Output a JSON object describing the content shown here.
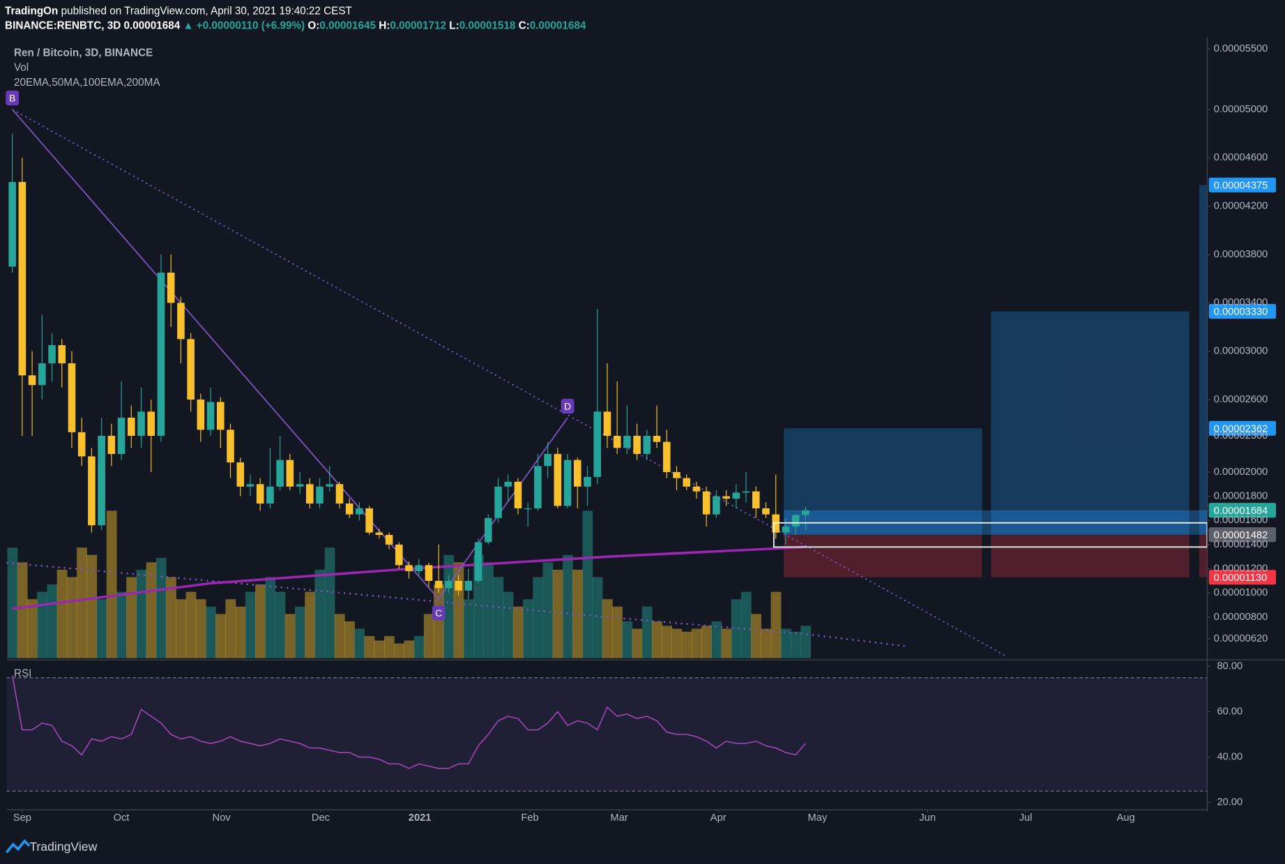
{
  "header": {
    "author": "TradingOn",
    "published": " published on TradingView.com, April 30, 2021 19:40:22 CEST",
    "symbol": "BINANCE:RENBTC, 3D",
    "last": "0.00001684",
    "change": "▲ +0.00000110 (+6.99%)",
    "ohlc": [
      {
        "label": "O:",
        "value": "0.00001645"
      },
      {
        "label": "H:",
        "value": "0.00001712"
      },
      {
        "label": "L:",
        "value": "0.00001518"
      },
      {
        "label": "C:",
        "value": "0.00001684"
      }
    ]
  },
  "chart_data": {
    "type": "candlestick",
    "title": "Ren / Bitcoin, 3D, BINANCE",
    "volume_label": "Vol",
    "ma_label": "20EMA,50MA,100EMA,200MA",
    "up_color": "#26a69a",
    "down_color": "#f9c02e",
    "xlim": [
      -0.58,
      120.5
    ],
    "xticks": [
      {
        "value": 1.0,
        "label": "Sep"
      },
      {
        "value": 11.0,
        "label": "Oct"
      },
      {
        "value": 21.1,
        "label": "Nov"
      },
      {
        "value": 31.1,
        "label": "Dec"
      },
      {
        "value": 41.1,
        "label": "2021"
      },
      {
        "value": 52.2,
        "label": "Feb"
      },
      {
        "value": 61.2,
        "label": "Mar"
      },
      {
        "value": 71.2,
        "label": "Apr"
      },
      {
        "value": 81.2,
        "label": "May"
      },
      {
        "value": 92.3,
        "label": "Jun"
      },
      {
        "value": 102.2,
        "label": "Jul"
      },
      {
        "value": 112.3,
        "label": "Aug"
      }
    ],
    "ylim": [
      4.6e-06,
      5.6e-05
    ],
    "yticks": [
      {
        "value": 5.5e-05,
        "label": "0.00005500"
      },
      {
        "value": 5e-05,
        "label": "0.00005000"
      },
      {
        "value": 4.6e-05,
        "label": "0.00004600"
      },
      {
        "value": 4.2e-05,
        "label": "0.00004200"
      },
      {
        "value": 3.8e-05,
        "label": "0.00003800"
      },
      {
        "value": 3.4e-05,
        "label": "0.00003400"
      },
      {
        "value": 3e-05,
        "label": "0.00003000"
      },
      {
        "value": 2.6e-05,
        "label": "0.00002600"
      },
      {
        "value": 2.3e-05,
        "label": "0.00002300"
      },
      {
        "value": 2e-05,
        "label": "0.00002000"
      },
      {
        "value": 1.8e-05,
        "label": "0.00001800"
      },
      {
        "value": 1.6e-05,
        "label": "0.00001600"
      },
      {
        "value": 1.4e-05,
        "label": "0.00001400"
      },
      {
        "value": 1.2e-05,
        "label": "0.00001200"
      },
      {
        "value": 1e-05,
        "label": "0.00001000"
      },
      {
        "value": 8e-06,
        "label": "0.00000800"
      },
      {
        "value": 6.2e-06,
        "label": "0.00000620"
      }
    ],
    "ohlc": [
      [
        3.7e-05,
        4.8e-05,
        3.65e-05,
        4.4e-05
      ],
      [
        4.4e-05,
        4.6e-05,
        2.3e-05,
        2.8e-05
      ],
      [
        2.8e-05,
        3e-05,
        2.3e-05,
        2.72e-05
      ],
      [
        2.72e-05,
        3.3e-05,
        2.6e-05,
        2.9e-05
      ],
      [
        2.9e-05,
        3.15e-05,
        2.75e-05,
        3.05e-05
      ],
      [
        3.05e-05,
        3.1e-05,
        2.7e-05,
        2.9e-05
      ],
      [
        2.9e-05,
        3e-05,
        2.2e-05,
        2.33e-05
      ],
      [
        2.33e-05,
        2.45e-05,
        2.05e-05,
        2.13e-05
      ],
      [
        2.13e-05,
        2.2e-05,
        1.5e-05,
        1.56e-05
      ],
      [
        1.56e-05,
        2.45e-05,
        1.52e-05,
        2.3e-05
      ],
      [
        2.3e-05,
        2.4e-05,
        2.05e-05,
        2.15e-05
      ],
      [
        2.15e-05,
        2.75e-05,
        2.1e-05,
        2.45e-05
      ],
      [
        2.45e-05,
        2.55e-05,
        2.2e-05,
        2.3e-05
      ],
      [
        2.3e-05,
        2.7e-05,
        2.2e-05,
        2.5e-05
      ],
      [
        2.5e-05,
        2.6e-05,
        2e-05,
        2.3e-05
      ],
      [
        2.3e-05,
        3.8e-05,
        2.25e-05,
        3.65e-05
      ],
      [
        3.65e-05,
        3.8e-05,
        3.2e-05,
        3.4e-05
      ],
      [
        3.4e-05,
        3.45e-05,
        2.9e-05,
        3.1e-05
      ],
      [
        3.1e-05,
        3.15e-05,
        2.5e-05,
        2.6e-05
      ],
      [
        2.6e-05,
        2.65e-05,
        2.25e-05,
        2.35e-05
      ],
      [
        2.35e-05,
        2.7e-05,
        2.3e-05,
        2.58e-05
      ],
      [
        2.58e-05,
        2.62e-05,
        2.2e-05,
        2.35e-05
      ],
      [
        2.35e-05,
        2.4e-05,
        1.95e-05,
        2.08e-05
      ],
      [
        2.08e-05,
        2.12e-05,
        1.8e-05,
        1.88e-05
      ],
      [
        1.88e-05,
        1.98e-05,
        1.8e-05,
        1.9e-05
      ],
      [
        1.9e-05,
        1.95e-05,
        1.68e-05,
        1.74e-05
      ],
      [
        1.74e-05,
        2.2e-05,
        1.7e-05,
        1.88e-05
      ],
      [
        1.88e-05,
        2.3e-05,
        1.85e-05,
        2.1e-05
      ],
      [
        2.1e-05,
        2.15e-05,
        1.85e-05,
        1.88e-05
      ],
      [
        1.88e-05,
        2e-05,
        1.82e-05,
        1.9e-05
      ],
      [
        1.9e-05,
        1.95e-05,
        1.7e-05,
        1.74e-05
      ],
      [
        1.74e-05,
        1.95e-05,
        1.7e-05,
        1.88e-05
      ],
      [
        1.88e-05,
        2.05e-05,
        1.84e-05,
        1.9e-05
      ],
      [
        1.9e-05,
        1.92e-05,
        1.7e-05,
        1.74e-05
      ],
      [
        1.74e-05,
        1.78e-05,
        1.62e-05,
        1.65e-05
      ],
      [
        1.65e-05,
        1.75e-05,
        1.6e-05,
        1.7e-05
      ],
      [
        1.7e-05,
        1.72e-05,
        1.48e-05,
        1.5e-05
      ],
      [
        1.5e-05,
        1.53e-05,
        1.45e-05,
        1.48e-05
      ],
      [
        1.48e-05,
        1.5e-05,
        1.36e-05,
        1.4e-05
      ],
      [
        1.4e-05,
        1.42e-05,
        1.2e-05,
        1.23e-05
      ],
      [
        1.23e-05,
        1.26e-05,
        1.12e-05,
        1.18e-05
      ],
      [
        1.18e-05,
        1.28e-05,
        1.14e-05,
        1.23e-05
      ],
      [
        1.23e-05,
        1.25e-05,
        1.05e-05,
        1.1e-05
      ],
      [
        1.1e-05,
        1.4e-05,
        1e-05,
        1.04e-05
      ],
      [
        1.04e-05,
        1.15e-05,
        1e-05,
        1.1e-05
      ],
      [
        1.1e-05,
        1.15e-05,
        9.8e-06,
        1.02e-05
      ],
      [
        1.02e-05,
        1.2e-05,
        9.5e-06,
        1.1e-05
      ],
      [
        1.1e-05,
        1.45e-05,
        1.08e-05,
        1.42e-05
      ],
      [
        1.42e-05,
        1.65e-05,
        1.4e-05,
        1.62e-05
      ],
      [
        1.62e-05,
        1.95e-05,
        1.58e-05,
        1.88e-05
      ],
      [
        1.88e-05,
        1.98e-05,
        1.75e-05,
        1.92e-05
      ],
      [
        1.92e-05,
        1.95e-05,
        1.65e-05,
        1.7e-05
      ],
      [
        1.7e-05,
        1.75e-05,
        1.55e-05,
        1.7e-05
      ],
      [
        1.7e-05,
        2.15e-05,
        1.68e-05,
        2.05e-05
      ],
      [
        2.05e-05,
        2.25e-05,
        1.95e-05,
        2.15e-05
      ],
      [
        2.15e-05,
        2.2e-05,
        1.7e-05,
        1.72e-05
      ],
      [
        1.72e-05,
        2.15e-05,
        1.7e-05,
        2.1e-05
      ],
      [
        2.1e-05,
        2.12e-05,
        1.7e-05,
        1.88e-05
      ],
      [
        1.88e-05,
        2.05e-05,
        1.72e-05,
        1.96e-05
      ],
      [
        1.96e-05,
        3.35e-05,
        1.9e-05,
        2.5e-05
      ],
      [
        2.5e-05,
        2.9e-05,
        2.2e-05,
        2.3e-05
      ],
      [
        2.3e-05,
        2.75e-05,
        2.15e-05,
        2.2e-05
      ],
      [
        2.2e-05,
        2.55e-05,
        2.15e-05,
        2.3e-05
      ],
      [
        2.3e-05,
        2.4e-05,
        2.1e-05,
        2.15e-05
      ],
      [
        2.15e-05,
        2.35e-05,
        2.1e-05,
        2.3e-05
      ],
      [
        2.3e-05,
        2.55e-05,
        2.2e-05,
        2.25e-05
      ],
      [
        2.25e-05,
        2.35e-05,
        1.95e-05,
        2e-05
      ],
      [
        2e-05,
        2.05e-05,
        1.85e-05,
        1.95e-05
      ],
      [
        1.95e-05,
        1.98e-05,
        1.85e-05,
        1.88e-05
      ],
      [
        1.88e-05,
        1.92e-05,
        1.78e-05,
        1.84e-05
      ],
      [
        1.84e-05,
        1.88e-05,
        1.55e-05,
        1.65e-05
      ],
      [
        1.65e-05,
        1.85e-05,
        1.62e-05,
        1.8e-05
      ],
      [
        1.8e-05,
        1.85e-05,
        1.72e-05,
        1.78e-05
      ],
      [
        1.78e-05,
        1.9e-05,
        1.7e-05,
        1.83e-05
      ],
      [
        1.83e-05,
        2e-05,
        1.75e-05,
        1.84e-05
      ],
      [
        1.84e-05,
        1.88e-05,
        1.62e-05,
        1.7e-05
      ],
      [
        1.7e-05,
        1.75e-05,
        1.62e-05,
        1.65e-05
      ],
      [
        1.65e-05,
        1.98e-05,
        1.45e-05,
        1.5e-05
      ],
      [
        1.5e-05,
        1.62e-05,
        1.4e-05,
        1.55e-05
      ],
      [
        1.55e-05,
        1.65e-05,
        1.48e-05,
        1.645e-05
      ],
      [
        1.645e-05,
        1.712e-05,
        1.518e-05,
        1.684e-05
      ]
    ],
    "volume": [
      75,
      65,
      40,
      45,
      50,
      60,
      55,
      75,
      70,
      40,
      100,
      45,
      55,
      60,
      65,
      68,
      55,
      40,
      45,
      40,
      35,
      30,
      40,
      35,
      45,
      50,
      55,
      45,
      30,
      35,
      45,
      60,
      75,
      30,
      25,
      20,
      15,
      12,
      15,
      10,
      12,
      15,
      30,
      50,
      70,
      65,
      40,
      70,
      65,
      55,
      45,
      35,
      40,
      55,
      65,
      60,
      70,
      60,
      100,
      55,
      40,
      35,
      25,
      20,
      35,
      25,
      22,
      20,
      18,
      20,
      22,
      25,
      20,
      40,
      45,
      30,
      20,
      45,
      20,
      18,
      22
    ],
    "ma200": {
      "x": [
        0,
        20,
        40,
        60,
        80
      ],
      "values": [
        8.7e-06,
        1.08e-05,
        1.2e-05,
        1.3e-05,
        1.38e-05
      ]
    },
    "ema100": {
      "x": [
        -0.58,
        20,
        40,
        60,
        80,
        90
      ],
      "values": [
        1.25e-05,
        1.1e-05,
        9.5e-06,
        8e-06,
        6.6e-06,
        5.6e-06
      ]
    },
    "trendline": {
      "x": [
        0,
        100.4
      ],
      "values": [
        5e-05,
        4.7e-06
      ]
    },
    "wave": {
      "x": [
        0,
        43,
        56
      ],
      "values": [
        5e-05,
        9.5e-06,
        2.45e-05
      ],
      "labels": [
        "B",
        "C",
        "D"
      ]
    },
    "position": {
      "entry": {
        "value": 1.482e-05,
        "label": "0.00001482"
      },
      "stop": {
        "value": 1.13e-05,
        "label": "0.00001130"
      },
      "current": 1.684e-05,
      "targets": [
        {
          "x": [
            77.8,
            97.8
          ],
          "value": 2.362e-05,
          "label": "0.00002362"
        },
        {
          "x": [
            98.7,
            118.7
          ],
          "value": 3.33e-05,
          "label": "0.00003330"
        },
        {
          "x": [
            119.7,
            120.5
          ],
          "value": 4.375e-05,
          "label": "0.00004375"
        }
      ]
    },
    "zone": {
      "x": [
        76.8,
        120.5
      ],
      "values": [
        1.58e-05,
        1.38e-05
      ]
    },
    "rsi": {
      "label": "RSI",
      "ylim": [
        17.8,
        81.8
      ],
      "bands": [
        75,
        25
      ],
      "yticks": [
        {
          "value": 80,
          "label": "80.00"
        },
        {
          "value": 60,
          "label": "60.00"
        },
        {
          "value": 40,
          "label": "40.00"
        },
        {
          "value": 20,
          "label": "20.00"
        }
      ],
      "values": [
        76,
        52,
        52,
        55,
        54,
        47,
        45,
        41,
        48,
        47,
        49,
        48,
        50,
        61,
        58,
        55,
        50,
        48,
        49,
        47,
        46,
        47,
        49,
        47,
        46,
        45,
        46,
        48,
        47,
        46,
        44,
        44,
        43,
        42,
        42,
        40,
        40,
        39,
        37,
        37,
        35,
        37,
        36,
        35,
        35,
        37,
        37,
        45,
        50,
        56,
        58,
        57,
        52,
        52,
        55,
        60,
        54,
        56,
        55,
        52,
        62,
        58,
        59,
        57,
        58,
        56,
        51,
        50,
        50,
        49,
        47,
        44,
        47,
        46,
        46,
        47,
        45,
        44,
        42,
        41,
        46
      ]
    }
  },
  "footer": {
    "brand": "TradingView"
  }
}
